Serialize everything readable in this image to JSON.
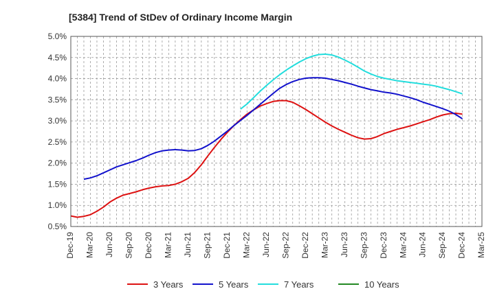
{
  "chart_data": {
    "type": "line",
    "title": "[5384]  Trend of StDev of Ordinary Income Margin",
    "ylim": [
      0.5,
      5.0
    ],
    "xlim": [
      "Dec-19",
      "Mar-25"
    ],
    "yticks": [
      0.5,
      1.0,
      1.5,
      2.0,
      2.5,
      3.0,
      3.5,
      4.0,
      4.5,
      5.0
    ],
    "yticklabels": [
      "0.5%",
      "1.0%",
      "1.5%",
      "2.0%",
      "2.5%",
      "3.0%",
      "3.5%",
      "4.0%",
      "4.5%",
      "5.0%"
    ],
    "xticklabels": [
      "Dec-19",
      "Mar-20",
      "Jun-20",
      "Sep-20",
      "Dec-20",
      "Mar-21",
      "Jun-21",
      "Sep-21",
      "Dec-21",
      "Mar-22",
      "Jun-22",
      "Sep-22",
      "Dec-22",
      "Mar-23",
      "Jun-23",
      "Sep-23",
      "Dec-23",
      "Mar-24",
      "Jun-24",
      "Sep-24",
      "Dec-24",
      "Mar-25"
    ],
    "grid": true,
    "legend_position": "bottom",
    "series": [
      {
        "name": "3 Years",
        "color": "#dd1111",
        "points": [
          [
            "Dec-19",
            0.75
          ],
          [
            "Jan-20",
            0.72
          ],
          [
            "Feb-20",
            0.74
          ],
          [
            "Mar-20",
            0.78
          ],
          [
            "Apr-20",
            0.86
          ],
          [
            "May-20",
            0.96
          ],
          [
            "Jun-20",
            1.08
          ],
          [
            "Jul-20",
            1.17
          ],
          [
            "Aug-20",
            1.24
          ],
          [
            "Sep-20",
            1.28
          ],
          [
            "Oct-20",
            1.32
          ],
          [
            "Nov-20",
            1.37
          ],
          [
            "Dec-20",
            1.41
          ],
          [
            "Jan-21",
            1.44
          ],
          [
            "Feb-21",
            1.46
          ],
          [
            "Mar-21",
            1.47
          ],
          [
            "Apr-21",
            1.5
          ],
          [
            "May-21",
            1.56
          ],
          [
            "Jun-21",
            1.64
          ],
          [
            "Jul-21",
            1.78
          ],
          [
            "Aug-21",
            1.96
          ],
          [
            "Sep-21",
            2.17
          ],
          [
            "Oct-21",
            2.37
          ],
          [
            "Nov-21",
            2.56
          ],
          [
            "Dec-21",
            2.73
          ],
          [
            "Jan-22",
            2.89
          ],
          [
            "Feb-22",
            3.03
          ],
          [
            "Mar-22",
            3.16
          ],
          [
            "Apr-22",
            3.26
          ],
          [
            "May-22",
            3.35
          ],
          [
            "Jun-22",
            3.41
          ],
          [
            "Jul-22",
            3.46
          ],
          [
            "Aug-22",
            3.48
          ],
          [
            "Sep-22",
            3.48
          ],
          [
            "Oct-22",
            3.44
          ],
          [
            "Nov-22",
            3.36
          ],
          [
            "Dec-22",
            3.27
          ],
          [
            "Jan-23",
            3.17
          ],
          [
            "Feb-23",
            3.07
          ],
          [
            "Mar-23",
            2.97
          ],
          [
            "Apr-23",
            2.88
          ],
          [
            "May-23",
            2.8
          ],
          [
            "Jun-23",
            2.73
          ],
          [
            "Jul-23",
            2.66
          ],
          [
            "Aug-23",
            2.6
          ],
          [
            "Sep-23",
            2.57
          ],
          [
            "Oct-23",
            2.58
          ],
          [
            "Nov-23",
            2.63
          ],
          [
            "Dec-23",
            2.7
          ],
          [
            "Jan-24",
            2.75
          ],
          [
            "Feb-24",
            2.8
          ],
          [
            "Mar-24",
            2.84
          ],
          [
            "Apr-24",
            2.88
          ],
          [
            "May-24",
            2.93
          ],
          [
            "Jun-24",
            2.98
          ],
          [
            "Jul-24",
            3.03
          ],
          [
            "Aug-24",
            3.09
          ],
          [
            "Sep-24",
            3.14
          ],
          [
            "Oct-24",
            3.17
          ],
          [
            "Nov-24",
            3.18
          ],
          [
            "Dec-24",
            3.16
          ]
        ]
      },
      {
        "name": "5 Years",
        "color": "#1111cc",
        "points": [
          [
            "Feb-20",
            1.62
          ],
          [
            "Mar-20",
            1.65
          ],
          [
            "Apr-20",
            1.7
          ],
          [
            "May-20",
            1.77
          ],
          [
            "Jun-20",
            1.84
          ],
          [
            "Jul-20",
            1.91
          ],
          [
            "Aug-20",
            1.96
          ],
          [
            "Sep-20",
            2.01
          ],
          [
            "Oct-20",
            2.06
          ],
          [
            "Nov-20",
            2.12
          ],
          [
            "Dec-20",
            2.19
          ],
          [
            "Jan-21",
            2.25
          ],
          [
            "Feb-21",
            2.29
          ],
          [
            "Mar-21",
            2.31
          ],
          [
            "Apr-21",
            2.32
          ],
          [
            "May-21",
            2.31
          ],
          [
            "Jun-21",
            2.29
          ],
          [
            "Jul-21",
            2.3
          ],
          [
            "Aug-21",
            2.34
          ],
          [
            "Sep-21",
            2.42
          ],
          [
            "Oct-21",
            2.52
          ],
          [
            "Nov-21",
            2.64
          ],
          [
            "Dec-21",
            2.76
          ],
          [
            "Jan-22",
            2.89
          ],
          [
            "Feb-22",
            3.01
          ],
          [
            "Mar-22",
            3.13
          ],
          [
            "Apr-22",
            3.26
          ],
          [
            "May-22",
            3.39
          ],
          [
            "Jun-22",
            3.52
          ],
          [
            "Jul-22",
            3.65
          ],
          [
            "Aug-22",
            3.77
          ],
          [
            "Sep-22",
            3.86
          ],
          [
            "Oct-22",
            3.93
          ],
          [
            "Nov-22",
            3.98
          ],
          [
            "Dec-22",
            4.01
          ],
          [
            "Jan-23",
            4.02
          ],
          [
            "Feb-23",
            4.02
          ],
          [
            "Mar-23",
            4.01
          ],
          [
            "Apr-23",
            3.98
          ],
          [
            "May-23",
            3.95
          ],
          [
            "Jun-23",
            3.91
          ],
          [
            "Jul-23",
            3.87
          ],
          [
            "Aug-23",
            3.82
          ],
          [
            "Sep-23",
            3.78
          ],
          [
            "Oct-23",
            3.74
          ],
          [
            "Nov-23",
            3.71
          ],
          [
            "Dec-23",
            3.68
          ],
          [
            "Jan-24",
            3.66
          ],
          [
            "Feb-24",
            3.63
          ],
          [
            "Mar-24",
            3.59
          ],
          [
            "Apr-24",
            3.55
          ],
          [
            "May-24",
            3.5
          ],
          [
            "Jun-24",
            3.44
          ],
          [
            "Jul-24",
            3.39
          ],
          [
            "Aug-24",
            3.34
          ],
          [
            "Sep-24",
            3.29
          ],
          [
            "Oct-24",
            3.23
          ],
          [
            "Nov-24",
            3.15
          ],
          [
            "Dec-24",
            3.05
          ]
        ]
      },
      {
        "name": "7 Years",
        "color": "#22dddd",
        "points": [
          [
            "Feb-22",
            3.28
          ],
          [
            "Mar-22",
            3.4
          ],
          [
            "Apr-22",
            3.55
          ],
          [
            "May-22",
            3.7
          ],
          [
            "Jun-22",
            3.84
          ],
          [
            "Jul-22",
            3.97
          ],
          [
            "Aug-22",
            4.09
          ],
          [
            "Sep-22",
            4.2
          ],
          [
            "Oct-22",
            4.3
          ],
          [
            "Nov-22",
            4.39
          ],
          [
            "Dec-22",
            4.47
          ],
          [
            "Jan-23",
            4.53
          ],
          [
            "Feb-23",
            4.57
          ],
          [
            "Mar-23",
            4.58
          ],
          [
            "Apr-23",
            4.56
          ],
          [
            "May-23",
            4.51
          ],
          [
            "Jun-23",
            4.44
          ],
          [
            "Jul-23",
            4.36
          ],
          [
            "Aug-23",
            4.27
          ],
          [
            "Sep-23",
            4.18
          ],
          [
            "Oct-23",
            4.11
          ],
          [
            "Nov-23",
            4.05
          ],
          [
            "Dec-23",
            4.01
          ],
          [
            "Jan-24",
            3.98
          ],
          [
            "Feb-24",
            3.95
          ],
          [
            "Mar-24",
            3.93
          ],
          [
            "Apr-24",
            3.91
          ],
          [
            "May-24",
            3.89
          ],
          [
            "Jun-24",
            3.87
          ],
          [
            "Jul-24",
            3.85
          ],
          [
            "Aug-24",
            3.82
          ],
          [
            "Sep-24",
            3.78
          ],
          [
            "Oct-24",
            3.74
          ],
          [
            "Nov-24",
            3.69
          ],
          [
            "Dec-24",
            3.64
          ]
        ]
      },
      {
        "name": "10 Years",
        "color": "#228822",
        "points": []
      }
    ]
  }
}
